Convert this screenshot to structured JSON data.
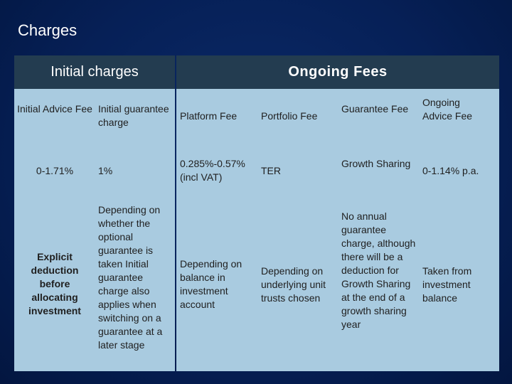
{
  "title": "Charges",
  "headers": {
    "initial": "Initial charges",
    "ongoing": "Ongoing  Fees"
  },
  "columns": {
    "initial_advice_fee": "Initial Advice Fee",
    "initial_guarantee_charge": "Initial guarantee charge",
    "platform_fee": "Platform Fee",
    "portfolio_fee": "Portfolio Fee",
    "guarantee_fee": "Guarantee Fee",
    "ongoing_advice_fee": "Ongoing Advice Fee"
  },
  "rates": {
    "initial_advice_fee": "0-1.71%",
    "initial_guarantee_charge": "1%",
    "platform_fee": "0.285%-0.57% (incl VAT)",
    "portfolio_fee": "TER",
    "guarantee_fee": "Growth Sharing",
    "ongoing_advice_fee": "0-1.14% p.a."
  },
  "notes": {
    "initial_advice_fee": "Explicit deduction before allocating investment",
    "initial_guarantee_charge": "Depending on whether the optional guarantee is taken Initial guarantee charge also applies when switching on a guarantee at a later stage",
    "platform_fee": "Depending on balance in investment account",
    "portfolio_fee": "Depending on underlying unit trusts chosen",
    "guarantee_fee": "No annual guarantee charge, although there will be a deduction for Growth Sharing at the end of a growth sharing year",
    "ongoing_advice_fee": "Taken from investment balance"
  }
}
